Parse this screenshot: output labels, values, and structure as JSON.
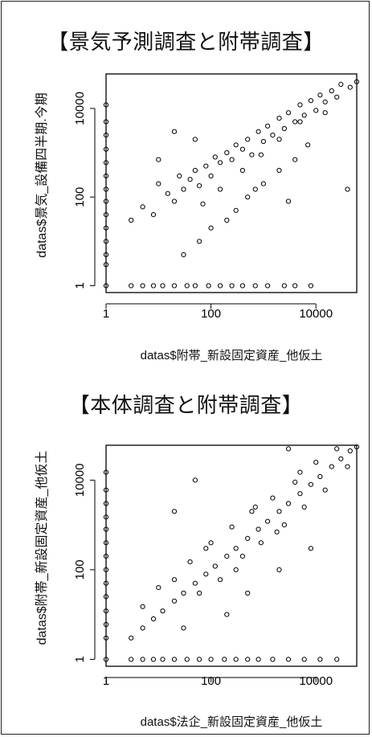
{
  "chart_data": [
    {
      "type": "scatter",
      "title": "【景気予測調査と附帯調査】",
      "xlabel": "datas$附帯_新設固定資産_他仮土",
      "ylabel": "datas$景気_設備四半期.今期",
      "x_scale": "log",
      "y_scale": "log",
      "xlim": [
        1,
        60000
      ],
      "ylim": [
        0.7,
        60000
      ],
      "x_ticks": [
        "1",
        "100",
        "10000"
      ],
      "y_ticks": [
        "1",
        "100",
        "10000"
      ],
      "grid": false,
      "marker": "open-circle",
      "x_ticks_values": [
        1,
        100,
        10000
      ],
      "y_ticks_values": [
        1,
        100,
        10000
      ],
      "points": [
        [
          1,
          1
        ],
        [
          1,
          3
        ],
        [
          1,
          5
        ],
        [
          1,
          10
        ],
        [
          1,
          20
        ],
        [
          1,
          40
        ],
        [
          1,
          80
        ],
        [
          1,
          150
        ],
        [
          1,
          300
        ],
        [
          1,
          600
        ],
        [
          1,
          1200
        ],
        [
          1,
          2500
        ],
        [
          1,
          5000
        ],
        [
          1,
          12000
        ],
        [
          3,
          1
        ],
        [
          5,
          1
        ],
        [
          8,
          1
        ],
        [
          12,
          1
        ],
        [
          20,
          1
        ],
        [
          35,
          1
        ],
        [
          50,
          1
        ],
        [
          90,
          1
        ],
        [
          150,
          1
        ],
        [
          250,
          1
        ],
        [
          400,
          1
        ],
        [
          700,
          1
        ],
        [
          1200,
          1
        ],
        [
          2500,
          1
        ],
        [
          4000,
          1
        ],
        [
          8000,
          1
        ],
        [
          3,
          30
        ],
        [
          5,
          60
        ],
        [
          8,
          40
        ],
        [
          10,
          200
        ],
        [
          15,
          120
        ],
        [
          20,
          80
        ],
        [
          25,
          300
        ],
        [
          30,
          150
        ],
        [
          40,
          250
        ],
        [
          50,
          400
        ],
        [
          60,
          180
        ],
        [
          80,
          500
        ],
        [
          100,
          300
        ],
        [
          120,
          800
        ],
        [
          150,
          600
        ],
        [
          200,
          1000
        ],
        [
          250,
          700
        ],
        [
          300,
          1500
        ],
        [
          400,
          1200
        ],
        [
          500,
          2000
        ],
        [
          600,
          900
        ],
        [
          800,
          3000
        ],
        [
          1000,
          1800
        ],
        [
          1200,
          4000
        ],
        [
          1500,
          2500
        ],
        [
          2000,
          6000
        ],
        [
          2500,
          3500
        ],
        [
          3000,
          8000
        ],
        [
          4000,
          5000
        ],
        [
          5000,
          12000
        ],
        [
          6000,
          7000
        ],
        [
          8000,
          15000
        ],
        [
          10000,
          9000
        ],
        [
          12000,
          20000
        ],
        [
          15000,
          14000
        ],
        [
          20000,
          25000
        ],
        [
          25000,
          18000
        ],
        [
          30000,
          35000
        ],
        [
          45000,
          30000
        ],
        [
          60000,
          40000
        ],
        [
          40000,
          150
        ],
        [
          15000,
          8000
        ],
        [
          30,
          5
        ],
        [
          60,
          10
        ],
        [
          100,
          20
        ],
        [
          200,
          30
        ],
        [
          300,
          50
        ],
        [
          500,
          100
        ],
        [
          700,
          150
        ],
        [
          1000,
          200
        ],
        [
          2000,
          400
        ],
        [
          4000,
          700
        ],
        [
          7000,
          1500
        ],
        [
          3000,
          80
        ],
        [
          50,
          2000
        ],
        [
          20,
          3000
        ],
        [
          10,
          700
        ],
        [
          70,
          70
        ],
        [
          150,
          150
        ],
        [
          400,
          400
        ],
        [
          900,
          900
        ],
        [
          2000,
          2000
        ],
        [
          5000,
          5000
        ]
      ]
    },
    {
      "type": "scatter",
      "title": "【本体調査と附帯調査】",
      "xlabel": "datas$法企_新設固定資産_他仮土",
      "ylabel": "datas$附帯_新設固定資産_他仮土",
      "x_scale": "log",
      "y_scale": "log",
      "xlim": [
        1,
        60000
      ],
      "ylim": [
        0.7,
        60000
      ],
      "x_ticks": [
        "1",
        "100",
        "10000"
      ],
      "y_ticks": [
        "1",
        "100",
        "10000"
      ],
      "grid": false,
      "marker": "open-circle",
      "x_ticks_values": [
        1,
        100,
        10000
      ],
      "y_ticks_values": [
        1,
        100,
        10000
      ],
      "points": [
        [
          1,
          1
        ],
        [
          1,
          3
        ],
        [
          1,
          6
        ],
        [
          1,
          12
        ],
        [
          1,
          25
        ],
        [
          1,
          50
        ],
        [
          1,
          100
        ],
        [
          1,
          200
        ],
        [
          1,
          400
        ],
        [
          1,
          800
        ],
        [
          1,
          1500
        ],
        [
          1,
          3000
        ],
        [
          1,
          6000
        ],
        [
          1,
          15000
        ],
        [
          3,
          1
        ],
        [
          5,
          1
        ],
        [
          8,
          1
        ],
        [
          12,
          1
        ],
        [
          20,
          1
        ],
        [
          35,
          1
        ],
        [
          60,
          1
        ],
        [
          100,
          1
        ],
        [
          180,
          1
        ],
        [
          300,
          1
        ],
        [
          500,
          1
        ],
        [
          800,
          1
        ],
        [
          1500,
          1
        ],
        [
          3000,
          1
        ],
        [
          6000,
          1
        ],
        [
          12000,
          1
        ],
        [
          25000,
          1
        ],
        [
          3,
          3
        ],
        [
          5,
          5
        ],
        [
          8,
          8
        ],
        [
          12,
          12
        ],
        [
          20,
          20
        ],
        [
          30,
          30
        ],
        [
          50,
          50
        ],
        [
          80,
          80
        ],
        [
          120,
          120
        ],
        [
          200,
          200
        ],
        [
          300,
          300
        ],
        [
          500,
          500
        ],
        [
          800,
          800
        ],
        [
          1200,
          1200
        ],
        [
          2000,
          2000
        ],
        [
          3000,
          3000
        ],
        [
          5000,
          5000
        ],
        [
          8000,
          8000
        ],
        [
          12000,
          12000
        ],
        [
          20000,
          20000
        ],
        [
          30000,
          30000
        ],
        [
          45000,
          45000
        ],
        [
          60000,
          55000
        ],
        [
          5,
          15
        ],
        [
          10,
          40
        ],
        [
          20,
          60
        ],
        [
          40,
          150
        ],
        [
          60,
          30
        ],
        [
          100,
          400
        ],
        [
          150,
          60
        ],
        [
          250,
          900
        ],
        [
          400,
          200
        ],
        [
          600,
          2000
        ],
        [
          900,
          400
        ],
        [
          1500,
          4000
        ],
        [
          2500,
          1000
        ],
        [
          4000,
          9000
        ],
        [
          6000,
          2500
        ],
        [
          10000,
          25000
        ],
        [
          15000,
          6000
        ],
        [
          25000,
          50000
        ],
        [
          40000,
          20000
        ],
        [
          20,
          2000
        ],
        [
          50,
          10000
        ],
        [
          3000,
          50000
        ],
        [
          200,
          10
        ],
        [
          500,
          30
        ],
        [
          2000,
          100
        ],
        [
          8000,
          300
        ],
        [
          30,
          5
        ],
        [
          80,
          300
        ],
        [
          300,
          100
        ],
        [
          700,
          2500
        ],
        [
          1800,
          700
        ],
        [
          5000,
          15000
        ]
      ]
    }
  ]
}
